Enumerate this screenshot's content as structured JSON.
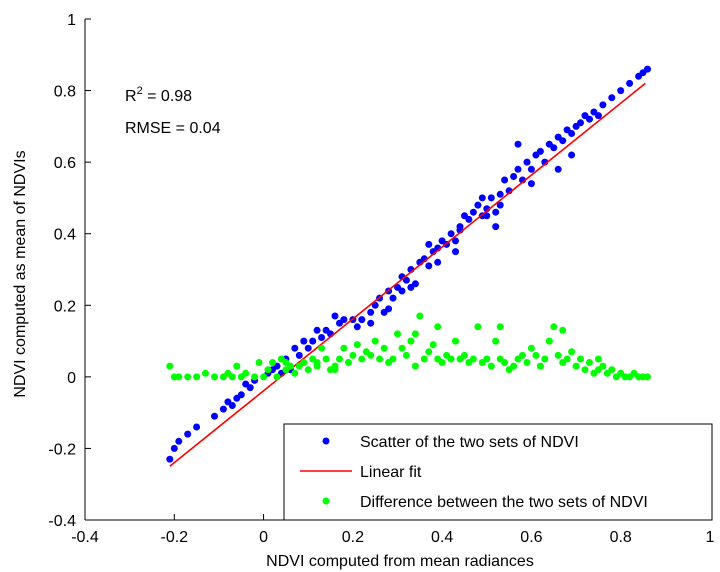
{
  "chart_data": {
    "type": "scatter",
    "title": "",
    "xlabel": "NDVI computed from mean radiances",
    "ylabel": "NDVI computed as mean of NDVIs",
    "xlim": [
      -0.4,
      1
    ],
    "ylim": [
      -0.4,
      1
    ],
    "x_ticks": [
      -0.4,
      -0.2,
      0,
      0.2,
      0.4,
      0.6,
      0.8,
      1
    ],
    "y_ticks": [
      -0.4,
      -0.2,
      0,
      0.2,
      0.4,
      0.6,
      0.8,
      1
    ],
    "x_tick_labels": [
      "-0.4",
      "-0.2",
      "0",
      "0.2",
      "0.4",
      "0.6",
      "0.8",
      "1"
    ],
    "y_tick_labels": [
      "-0.4",
      "-0.2",
      "0",
      "0.2",
      "0.4",
      "0.6",
      "0.8",
      "1"
    ],
    "grid": false,
    "legend_position": "bottom-right",
    "annotations": {
      "r2_prefix": "R",
      "r2_exponent": "2",
      "r2_value": " = 0.98",
      "rmse": "RMSE = 0.04"
    },
    "colors": {
      "scatter": "#0000ff",
      "fit": "#ff0000",
      "difference": "#00ff00"
    },
    "series": [
      {
        "name": "Scatter of the two sets of NDVI",
        "kind": "points",
        "color": "#0000ff",
        "points": [
          [
            -0.21,
            -0.23
          ],
          [
            -0.2,
            -0.2
          ],
          [
            -0.19,
            -0.18
          ],
          [
            -0.17,
            -0.16
          ],
          [
            -0.15,
            -0.14
          ],
          [
            -0.11,
            -0.11
          ],
          [
            -0.09,
            -0.09
          ],
          [
            -0.08,
            -0.07
          ],
          [
            -0.07,
            -0.08
          ],
          [
            -0.06,
            -0.06
          ],
          [
            -0.05,
            -0.05
          ],
          [
            -0.04,
            -0.02
          ],
          [
            -0.03,
            -0.03
          ],
          [
            -0.02,
            -0.01
          ],
          [
            0.01,
            0.01
          ],
          [
            0.02,
            0.02
          ],
          [
            0.03,
            0.03
          ],
          [
            0.04,
            0.01
          ],
          [
            0.05,
            0.05
          ],
          [
            0.06,
            0.02
          ],
          [
            0.07,
            0.08
          ],
          [
            0.08,
            0.06
          ],
          [
            0.09,
            0.1
          ],
          [
            0.1,
            0.08
          ],
          [
            0.11,
            0.1
          ],
          [
            0.12,
            0.13
          ],
          [
            0.13,
            0.11
          ],
          [
            0.14,
            0.13
          ],
          [
            0.15,
            0.12
          ],
          [
            0.16,
            0.17
          ],
          [
            0.17,
            0.15
          ],
          [
            0.18,
            0.16
          ],
          [
            0.2,
            0.16
          ],
          [
            0.21,
            0.14
          ],
          [
            0.22,
            0.16
          ],
          [
            0.24,
            0.15
          ],
          [
            0.25,
            0.2
          ],
          [
            0.26,
            0.22
          ],
          [
            0.27,
            0.18
          ],
          [
            0.28,
            0.24
          ],
          [
            0.29,
            0.22
          ],
          [
            0.3,
            0.25
          ],
          [
            0.31,
            0.28
          ],
          [
            0.32,
            0.27
          ],
          [
            0.33,
            0.3
          ],
          [
            0.34,
            0.26
          ],
          [
            0.35,
            0.32
          ],
          [
            0.36,
            0.33
          ],
          [
            0.37,
            0.31
          ],
          [
            0.38,
            0.35
          ],
          [
            0.39,
            0.36
          ],
          [
            0.4,
            0.38
          ],
          [
            0.41,
            0.37
          ],
          [
            0.42,
            0.4
          ],
          [
            0.43,
            0.35
          ],
          [
            0.44,
            0.42
          ],
          [
            0.45,
            0.45
          ],
          [
            0.46,
            0.44
          ],
          [
            0.47,
            0.46
          ],
          [
            0.48,
            0.48
          ],
          [
            0.49,
            0.45
          ],
          [
            0.5,
            0.47
          ],
          [
            0.51,
            0.5
          ],
          [
            0.52,
            0.42
          ],
          [
            0.53,
            0.51
          ],
          [
            0.54,
            0.55
          ],
          [
            0.55,
            0.52
          ],
          [
            0.56,
            0.56
          ],
          [
            0.57,
            0.58
          ],
          [
            0.58,
            0.55
          ],
          [
            0.59,
            0.6
          ],
          [
            0.6,
            0.58
          ],
          [
            0.61,
            0.62
          ],
          [
            0.62,
            0.63
          ],
          [
            0.63,
            0.6
          ],
          [
            0.64,
            0.65
          ],
          [
            0.65,
            0.64
          ],
          [
            0.66,
            0.67
          ],
          [
            0.67,
            0.66
          ],
          [
            0.68,
            0.69
          ],
          [
            0.69,
            0.68
          ],
          [
            0.7,
            0.7
          ],
          [
            0.71,
            0.71
          ],
          [
            0.72,
            0.73
          ],
          [
            0.73,
            0.72
          ],
          [
            0.74,
            0.74
          ],
          [
            0.75,
            0.73
          ],
          [
            0.76,
            0.76
          ],
          [
            0.78,
            0.78
          ],
          [
            0.8,
            0.8
          ],
          [
            0.82,
            0.82
          ],
          [
            0.84,
            0.84
          ],
          [
            0.85,
            0.85
          ],
          [
            0.86,
            0.86
          ],
          [
            0.49,
            0.5
          ],
          [
            0.53,
            0.48
          ],
          [
            0.57,
            0.65
          ],
          [
            0.6,
            0.54
          ],
          [
            0.66,
            0.58
          ],
          [
            0.69,
            0.62
          ],
          [
            0.43,
            0.38
          ],
          [
            0.39,
            0.32
          ],
          [
            0.33,
            0.25
          ],
          [
            0.28,
            0.19
          ],
          [
            0.24,
            0.18
          ],
          [
            0.5,
            0.45
          ],
          [
            0.52,
            0.46
          ],
          [
            0.44,
            0.41
          ],
          [
            0.37,
            0.37
          ],
          [
            0.31,
            0.24
          ]
        ]
      },
      {
        "name": "Linear fit",
        "kind": "line",
        "color": "#ff0000",
        "points": [
          [
            -0.21,
            -0.25
          ],
          [
            0.855,
            0.82
          ]
        ]
      },
      {
        "name": "Difference between the two sets of NDVI",
        "kind": "points",
        "color": "#00ff00",
        "points": [
          [
            -0.21,
            0.03
          ],
          [
            -0.2,
            0
          ],
          [
            -0.19,
            0
          ],
          [
            -0.17,
            0
          ],
          [
            -0.15,
            0
          ],
          [
            -0.13,
            0.01
          ],
          [
            -0.11,
            0
          ],
          [
            -0.09,
            0
          ],
          [
            -0.08,
            0.01
          ],
          [
            -0.07,
            0
          ],
          [
            -0.06,
            0.03
          ],
          [
            -0.05,
            0
          ],
          [
            -0.04,
            0.01
          ],
          [
            -0.02,
            0
          ],
          [
            -0.01,
            0.04
          ],
          [
            0,
            0
          ],
          [
            0.01,
            0.02
          ],
          [
            0.02,
            0.04
          ],
          [
            0.03,
            0
          ],
          [
            0.04,
            0.05
          ],
          [
            0.05,
            0.02
          ],
          [
            0.06,
            0.03
          ],
          [
            0.07,
            0.01
          ],
          [
            0.08,
            0.03
          ],
          [
            0.09,
            0.04
          ],
          [
            0.1,
            0.02
          ],
          [
            0.11,
            0.05
          ],
          [
            0.12,
            0.03
          ],
          [
            0.13,
            0.08
          ],
          [
            0.14,
            0.05
          ],
          [
            0.15,
            0.02
          ],
          [
            0.16,
            0.03
          ],
          [
            0.17,
            0.05
          ],
          [
            0.18,
            0.08
          ],
          [
            0.19,
            0.04
          ],
          [
            0.2,
            0.06
          ],
          [
            0.21,
            0.09
          ],
          [
            0.22,
            0.05
          ],
          [
            0.23,
            0.07
          ],
          [
            0.24,
            0.06
          ],
          [
            0.25,
            0.1
          ],
          [
            0.26,
            0.05
          ],
          [
            0.27,
            0.08
          ],
          [
            0.28,
            0.04
          ],
          [
            0.29,
            0.05
          ],
          [
            0.3,
            0.12
          ],
          [
            0.31,
            0.08
          ],
          [
            0.32,
            0.06
          ],
          [
            0.33,
            0.1
          ],
          [
            0.34,
            0.03
          ],
          [
            0.35,
            0.17
          ],
          [
            0.36,
            0.05
          ],
          [
            0.37,
            0.07
          ],
          [
            0.38,
            0.09
          ],
          [
            0.39,
            0.05
          ],
          [
            0.4,
            0.04
          ],
          [
            0.41,
            0.06
          ],
          [
            0.42,
            0.05
          ],
          [
            0.43,
            0.1
          ],
          [
            0.44,
            0.05
          ],
          [
            0.45,
            0.06
          ],
          [
            0.46,
            0.04
          ],
          [
            0.47,
            0.05
          ],
          [
            0.48,
            0.14
          ],
          [
            0.49,
            0.04
          ],
          [
            0.5,
            0.05
          ],
          [
            0.51,
            0.03
          ],
          [
            0.52,
            0.1
          ],
          [
            0.53,
            0.05
          ],
          [
            0.54,
            0.04
          ],
          [
            0.55,
            0.02
          ],
          [
            0.56,
            0.03
          ],
          [
            0.57,
            0.05
          ],
          [
            0.58,
            0.06
          ],
          [
            0.59,
            0.04
          ],
          [
            0.6,
            0.08
          ],
          [
            0.61,
            0.06
          ],
          [
            0.62,
            0.03
          ],
          [
            0.63,
            0.05
          ],
          [
            0.64,
            0.1
          ],
          [
            0.65,
            0.14
          ],
          [
            0.66,
            0.06
          ],
          [
            0.67,
            0.04
          ],
          [
            0.68,
            0.05
          ],
          [
            0.69,
            0.07
          ],
          [
            0.7,
            0.03
          ],
          [
            0.71,
            0.05
          ],
          [
            0.72,
            0.02
          ],
          [
            0.73,
            0.04
          ],
          [
            0.74,
            0.01
          ],
          [
            0.75,
            0.02
          ],
          [
            0.76,
            0.03
          ],
          [
            0.77,
            0.01
          ],
          [
            0.78,
            0.02
          ],
          [
            0.79,
            0
          ],
          [
            0.8,
            0.01
          ],
          [
            0.81,
            0
          ],
          [
            0.82,
            0
          ],
          [
            0.83,
            0.01
          ],
          [
            0.84,
            0
          ],
          [
            0.85,
            0
          ],
          [
            0.86,
            0
          ],
          [
            0.12,
            0.04
          ],
          [
            0.16,
            0.02
          ],
          [
            0.05,
            0.04
          ],
          [
            0.39,
            0.14
          ],
          [
            0.53,
            0.14
          ],
          [
            0.67,
            0.13
          ],
          [
            0.75,
            0.05
          ],
          [
            0.34,
            0.12
          ]
        ]
      }
    ]
  }
}
